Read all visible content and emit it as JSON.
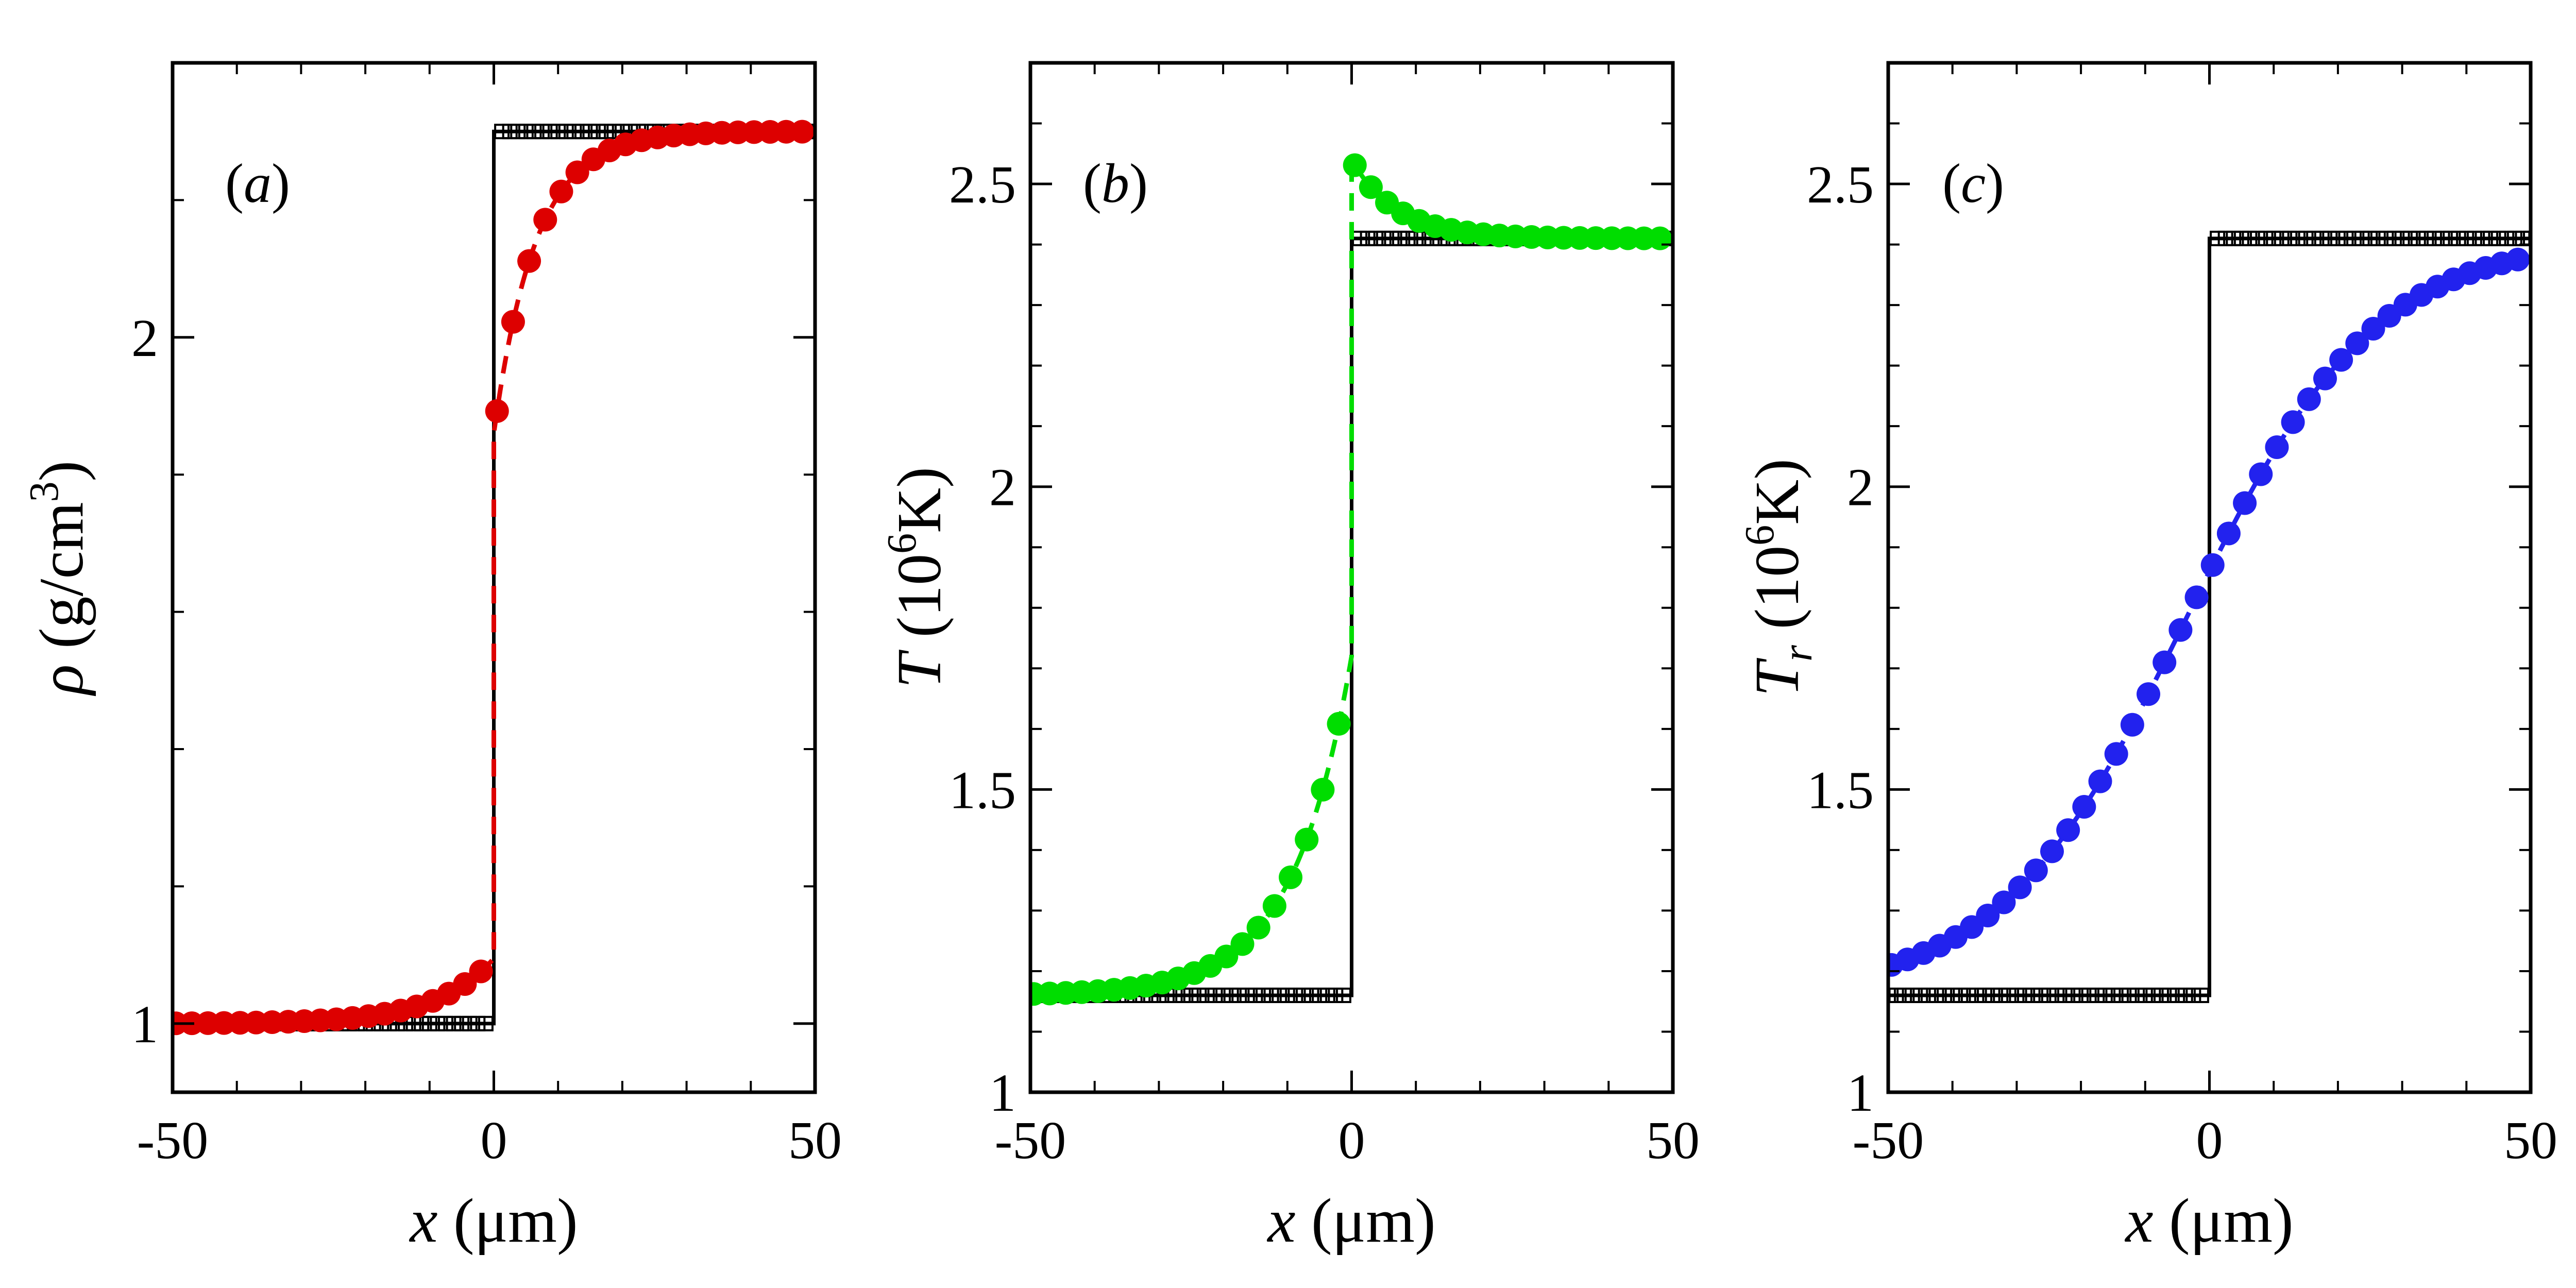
{
  "chart_data": [
    {
      "type": "line",
      "panel_label": "(a)",
      "panel_letter": "a",
      "ylabel": "ρ (g/cm3)",
      "ylabel_parts": {
        "sym": "ρ",
        "pre": " (g/cm",
        "sup": "3",
        "post": ")"
      },
      "xlabel": "x (μm)",
      "xlabel_parts": {
        "sym": "x",
        "rest": " (μm)"
      },
      "xlim": [
        -50,
        50
      ],
      "ylim": [
        0.9,
        2.4
      ],
      "x_ticks": [
        -50,
        0,
        50
      ],
      "x_tick_labels": [
        "-50",
        "0",
        "50"
      ],
      "y_ticks": [
        1,
        2
      ],
      "y_tick_labels": [
        "1",
        "2"
      ],
      "y_minor_step": 0.2,
      "x_minor_step": 10,
      "exact_solution": {
        "left": 1.0,
        "right": 2.3,
        "jump_x": 0
      },
      "numeric_curve": {
        "color": "#dd0000",
        "left": 1.0,
        "right": 2.3,
        "center": 0.5,
        "tail_amp": 0.095,
        "tail_len": 9,
        "rise_len": 6.5,
        "shock_x": 0
      },
      "colors": {
        "markers": "#dd0000",
        "exact": "#000000"
      }
    },
    {
      "type": "line",
      "panel_label": "(b)",
      "panel_letter": "b",
      "ylabel": "T (106K)",
      "ylabel_parts": {
        "sym": "T",
        "sub": "",
        "pre": " (10",
        "sup": "6",
        "post": "K)"
      },
      "xlabel": "x (μm)",
      "xlabel_parts": {
        "sym": "x",
        "rest": " (μm)"
      },
      "xlim": [
        -50,
        50
      ],
      "ylim": [
        1,
        2.7
      ],
      "x_ticks": [
        -50,
        0,
        50
      ],
      "x_tick_labels": [
        "-50",
        "0",
        "50"
      ],
      "y_ticks": [
        1,
        1.5,
        2,
        2.5
      ],
      "y_tick_labels": [
        "1",
        "1.5",
        "2",
        "2.5"
      ],
      "y_minor_step": 0.1,
      "x_minor_step": 10,
      "exact_solution": {
        "left": 1.16,
        "right": 2.41,
        "jump_x": 0
      },
      "numeric_curve": {
        "color": "#00dd00",
        "left": 1.16,
        "pre_peak": 1.72,
        "precursor_len": 9,
        "right": 2.41,
        "peak": 2.54,
        "relax_len": 7,
        "shock_x": 0
      },
      "colors": {
        "markers": "#00dd00",
        "exact": "#000000"
      }
    },
    {
      "type": "line",
      "panel_label": "(c)",
      "panel_letter": "c",
      "ylabel": "Tr (106K)",
      "ylabel_parts": {
        "sym": "T",
        "sub": "r",
        "pre": " (10",
        "sup": "6",
        "post": "K)"
      },
      "xlabel": "x (μm)",
      "xlabel_parts": {
        "sym": "x",
        "rest": " (μm)"
      },
      "xlim": [
        -50,
        50
      ],
      "ylim": [
        1,
        2.7
      ],
      "x_ticks": [
        -50,
        0,
        50
      ],
      "x_tick_labels": [
        "-50",
        "0",
        "50"
      ],
      "y_ticks": [
        1,
        1.5,
        2,
        2.5
      ],
      "y_tick_labels": [
        "1",
        "1.5",
        "2",
        "2.5"
      ],
      "y_minor_step": 0.1,
      "x_minor_step": 10,
      "exact_solution": {
        "left": 1.16,
        "right": 2.41,
        "jump_x": 0
      },
      "numeric_curve": {
        "color": "#2222ee",
        "left": 1.16,
        "right": 2.41,
        "center": -3.5,
        "width": 14.5,
        "shock_x": 0
      },
      "colors": {
        "markers": "#2222ee",
        "exact": "#000000"
      }
    }
  ]
}
